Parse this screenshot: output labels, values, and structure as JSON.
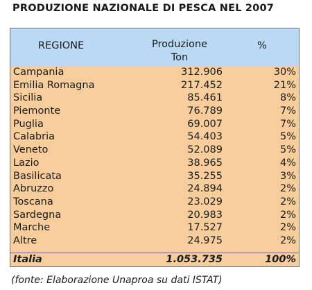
{
  "chart_data": {
    "type": "table",
    "title": "PRODUZIONE NAZIONALE DI PESCA NEL 2007",
    "columns": {
      "region": "REGIONE",
      "production_line1": "Produzione",
      "production_line2": "Ton",
      "percent": "%"
    },
    "rows": [
      {
        "region": "Campania",
        "production": "312.906",
        "percent": "30%"
      },
      {
        "region": "Emilia Romagna",
        "production": "217.452",
        "percent": "21%"
      },
      {
        "region": "Sicilia",
        "production": "85.461",
        "percent": "8%"
      },
      {
        "region": "Piemonte",
        "production": "76.789",
        "percent": "7%"
      },
      {
        "region": "Puglia",
        "production": "69.007",
        "percent": "7%"
      },
      {
        "region": "Calabria",
        "production": "54.403",
        "percent": "5%"
      },
      {
        "region": "Veneto",
        "production": "52.089",
        "percent": "5%"
      },
      {
        "region": "Lazio",
        "production": "38.965",
        "percent": "4%"
      },
      {
        "region": "Basilicata",
        "production": "35.255",
        "percent": "3%"
      },
      {
        "region": "Abruzzo",
        "production": "24.894",
        "percent": "2%"
      },
      {
        "region": "Toscana",
        "production": "23.029",
        "percent": "2%"
      },
      {
        "region": "Sardegna",
        "production": "20.983",
        "percent": "2%"
      },
      {
        "region": "Marche",
        "production": "17.527",
        "percent": "2%"
      },
      {
        "region": "Altre",
        "production": "24.975",
        "percent": "2%"
      }
    ],
    "total": {
      "region": "Italia",
      "production": "1.053.735",
      "percent": "100%"
    },
    "source": "(fonte: Elaborazione Unaproa su dati ISTAT)"
  },
  "colors": {
    "header_bg": "#bad9f4",
    "body_bg": "#f8cd9c",
    "border": "#6f6f6f"
  }
}
